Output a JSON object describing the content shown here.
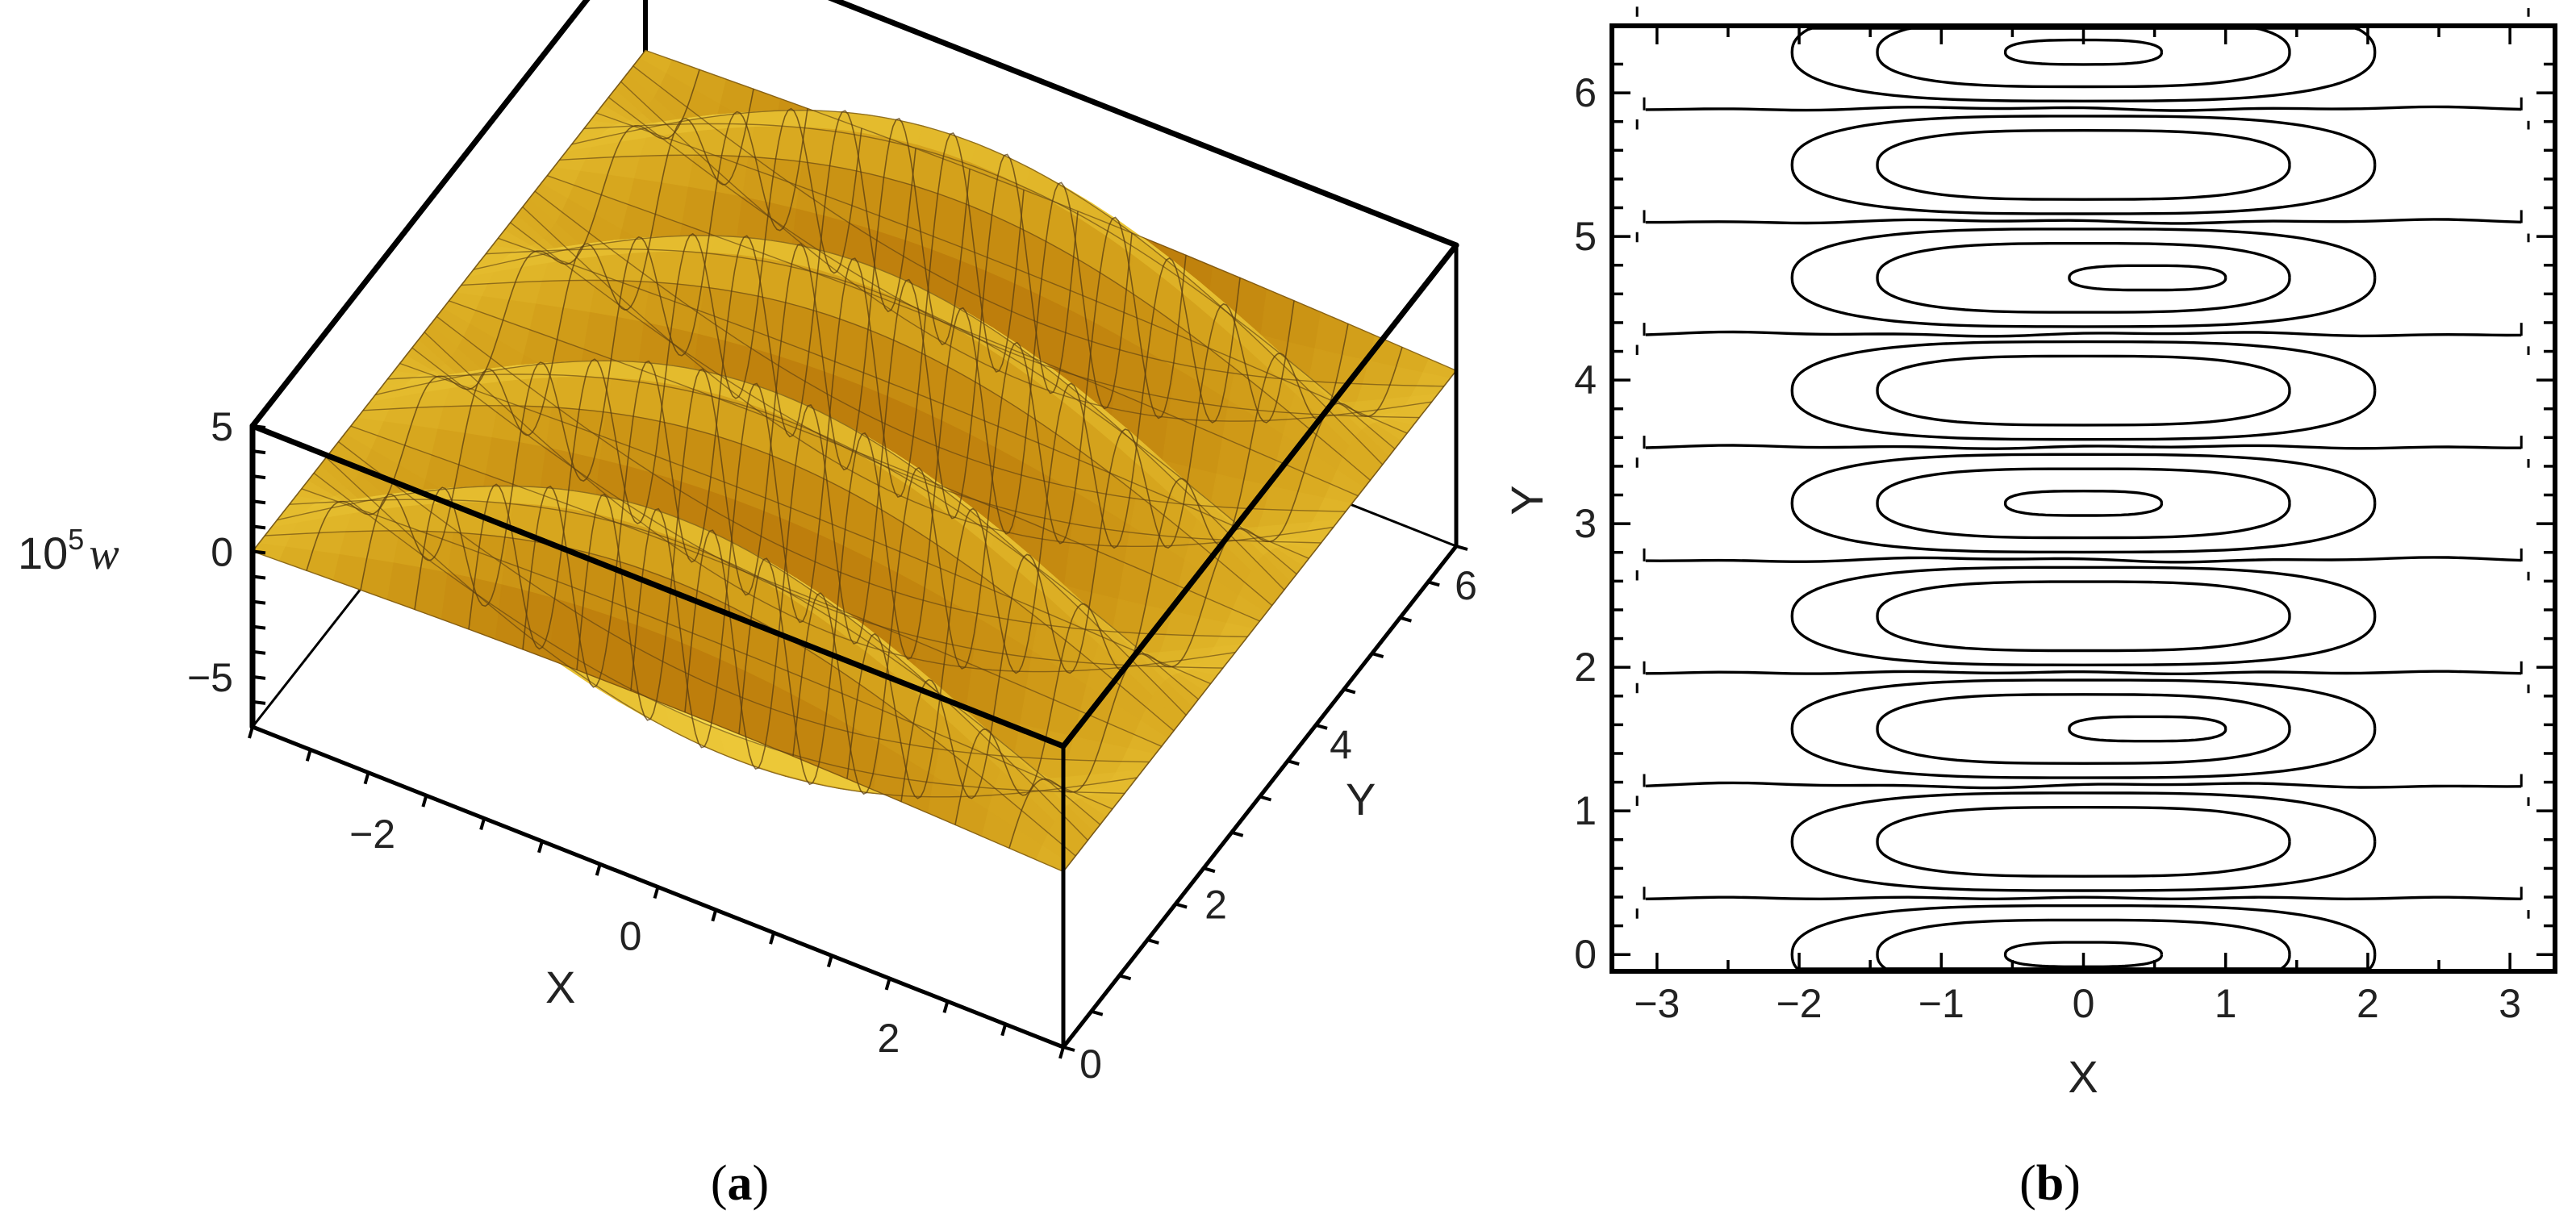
{
  "panels": {
    "a": {
      "caption_open": "(",
      "caption_letter": "a",
      "caption_close": ")"
    },
    "b": {
      "caption_open": "(",
      "caption_letter": "b",
      "caption_close": ")"
    }
  },
  "colors": {
    "surface_light": "#fdd84a",
    "surface_mid": "#f0a818",
    "surface_dark": "#b8740c",
    "frame": "#000000",
    "mesh": "#6b4a1a"
  },
  "chart_data": [
    {
      "type": "surface",
      "title": "",
      "xlabel": "X",
      "ylabel": "Y",
      "zlabel_base": "10",
      "zlabel_exp": "5",
      "zlabel_var": "w",
      "xlim": [
        -3.14159,
        3.14159
      ],
      "ylim": [
        0,
        6.28319
      ],
      "zlim": [
        -7,
        5
      ],
      "xticks": [
        -2,
        0,
        2
      ],
      "yticks": [
        0,
        2,
        4,
        6
      ],
      "zticks": [
        5,
        0,
        -5
      ],
      "function": "w = A cos(X/2) sin(4Y), A = 6e-5, ridges along X",
      "ridge_count": 4
    },
    {
      "type": "contour",
      "title": "",
      "xlabel": "X",
      "ylabel": "Y",
      "xlim": [
        -3.3,
        3.3
      ],
      "ylim": [
        -0.1,
        6.45
      ],
      "xticks": [
        -3,
        -2,
        -1,
        0,
        1,
        2,
        3
      ],
      "yticks": [
        0,
        1,
        2,
        3,
        4,
        5,
        6
      ],
      "cell_centers_y": [
        0.0,
        0.785,
        1.571,
        2.356,
        3.142,
        3.927,
        4.712,
        5.498,
        6.283
      ],
      "separatrix_y": [
        0.393,
        1.178,
        1.963,
        2.749,
        3.534,
        4.32,
        5.105,
        5.89
      ],
      "contour_half_widths_x": [
        2.05,
        1.45,
        0.55
      ],
      "contour_half_heights_y": [
        0.34,
        0.24,
        0.085
      ]
    }
  ]
}
